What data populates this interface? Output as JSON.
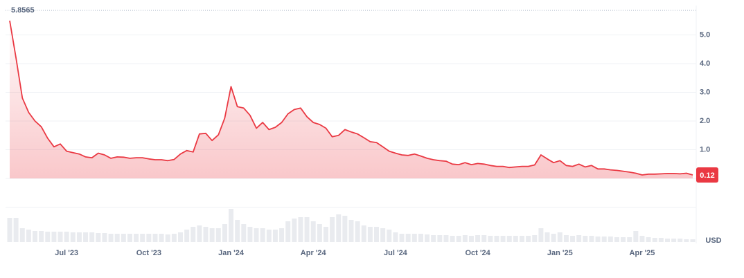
{
  "chart_data": {
    "type": "line",
    "categories": [
      null,
      null,
      null,
      null,
      null,
      null,
      null,
      null,
      null,
      "Jul '23",
      null,
      null,
      null,
      null,
      null,
      null,
      null,
      null,
      null,
      null,
      null,
      null,
      "Oct '23",
      null,
      null,
      null,
      null,
      null,
      null,
      null,
      null,
      null,
      null,
      null,
      null,
      "Jan '24",
      null,
      null,
      null,
      null,
      null,
      null,
      null,
      null,
      null,
      null,
      null,
      null,
      "Apr '24",
      null,
      null,
      null,
      null,
      null,
      null,
      null,
      null,
      null,
      null,
      null,
      null,
      "Jul '24",
      null,
      null,
      null,
      null,
      null,
      null,
      null,
      null,
      null,
      null,
      null,
      null,
      "Oct '24",
      null,
      null,
      null,
      null,
      null,
      null,
      null,
      null,
      null,
      null,
      null,
      null,
      "Jan '25",
      null,
      null,
      null,
      null,
      null,
      null,
      null,
      null,
      null,
      null,
      null,
      null,
      "Apr '25",
      null,
      null,
      null,
      null,
      null,
      null,
      null,
      null
    ],
    "values": [
      5.5,
      4.2,
      2.8,
      2.3,
      2.0,
      1.8,
      1.4,
      1.1,
      1.2,
      0.95,
      0.9,
      0.85,
      0.75,
      0.72,
      0.88,
      0.82,
      0.7,
      0.75,
      0.74,
      0.7,
      0.72,
      0.72,
      0.68,
      0.65,
      0.65,
      0.62,
      0.66,
      0.85,
      0.97,
      0.92,
      1.55,
      1.57,
      1.32,
      1.52,
      2.1,
      3.2,
      2.5,
      2.45,
      2.2,
      1.75,
      1.95,
      1.7,
      1.78,
      1.95,
      2.25,
      2.4,
      2.45,
      2.15,
      1.95,
      1.88,
      1.75,
      1.45,
      1.5,
      1.7,
      1.62,
      1.55,
      1.42,
      1.28,
      1.25,
      1.1,
      0.95,
      0.88,
      0.82,
      0.8,
      0.85,
      0.78,
      0.7,
      0.65,
      0.62,
      0.6,
      0.5,
      0.48,
      0.55,
      0.48,
      0.52,
      0.5,
      0.45,
      0.42,
      0.42,
      0.38,
      0.4,
      0.42,
      0.42,
      0.47,
      0.82,
      0.68,
      0.55,
      0.62,
      0.45,
      0.42,
      0.5,
      0.4,
      0.45,
      0.33,
      0.33,
      0.3,
      0.28,
      0.25,
      0.22,
      0.18,
      0.12,
      0.15,
      0.15,
      0.16,
      0.17,
      0.17,
      0.16,
      0.18,
      0.12
    ],
    "color": "#ea3943",
    "volume": [
      35,
      35,
      20,
      18,
      16,
      16,
      15,
      15,
      15,
      15,
      14,
      14,
      14,
      14,
      13,
      13,
      12,
      12,
      12,
      12,
      12,
      12,
      12,
      12,
      12,
      11,
      12,
      14,
      18,
      22,
      24,
      22,
      20,
      20,
      26,
      48,
      32,
      26,
      22,
      20,
      20,
      18,
      18,
      20,
      30,
      34,
      36,
      36,
      30,
      26,
      22,
      36,
      40,
      38,
      32,
      30,
      24,
      22,
      22,
      20,
      18,
      14,
      12,
      12,
      12,
      12,
      11,
      10,
      10,
      10,
      9,
      9,
      10,
      9,
      10,
      10,
      9,
      9,
      9,
      9,
      9,
      9,
      9,
      10,
      20,
      14,
      12,
      14,
      10,
      9,
      10,
      9,
      9,
      8,
      8,
      8,
      7,
      7,
      7,
      16,
      9,
      7,
      6,
      6,
      5,
      5,
      5,
      4,
      4
    ],
    "volume_color": "#e9ebef",
    "ylim": [
      0,
      6
    ],
    "yticks": [
      {
        "value": 1,
        "label": "1.0"
      },
      {
        "value": 2,
        "label": "2.0"
      },
      {
        "value": 3,
        "label": "3.0"
      },
      {
        "value": 4,
        "label": "4.0"
      },
      {
        "value": 5,
        "label": "5.0"
      }
    ],
    "max_label": 5.8565,
    "currency_label": "USD",
    "grid": true
  }
}
